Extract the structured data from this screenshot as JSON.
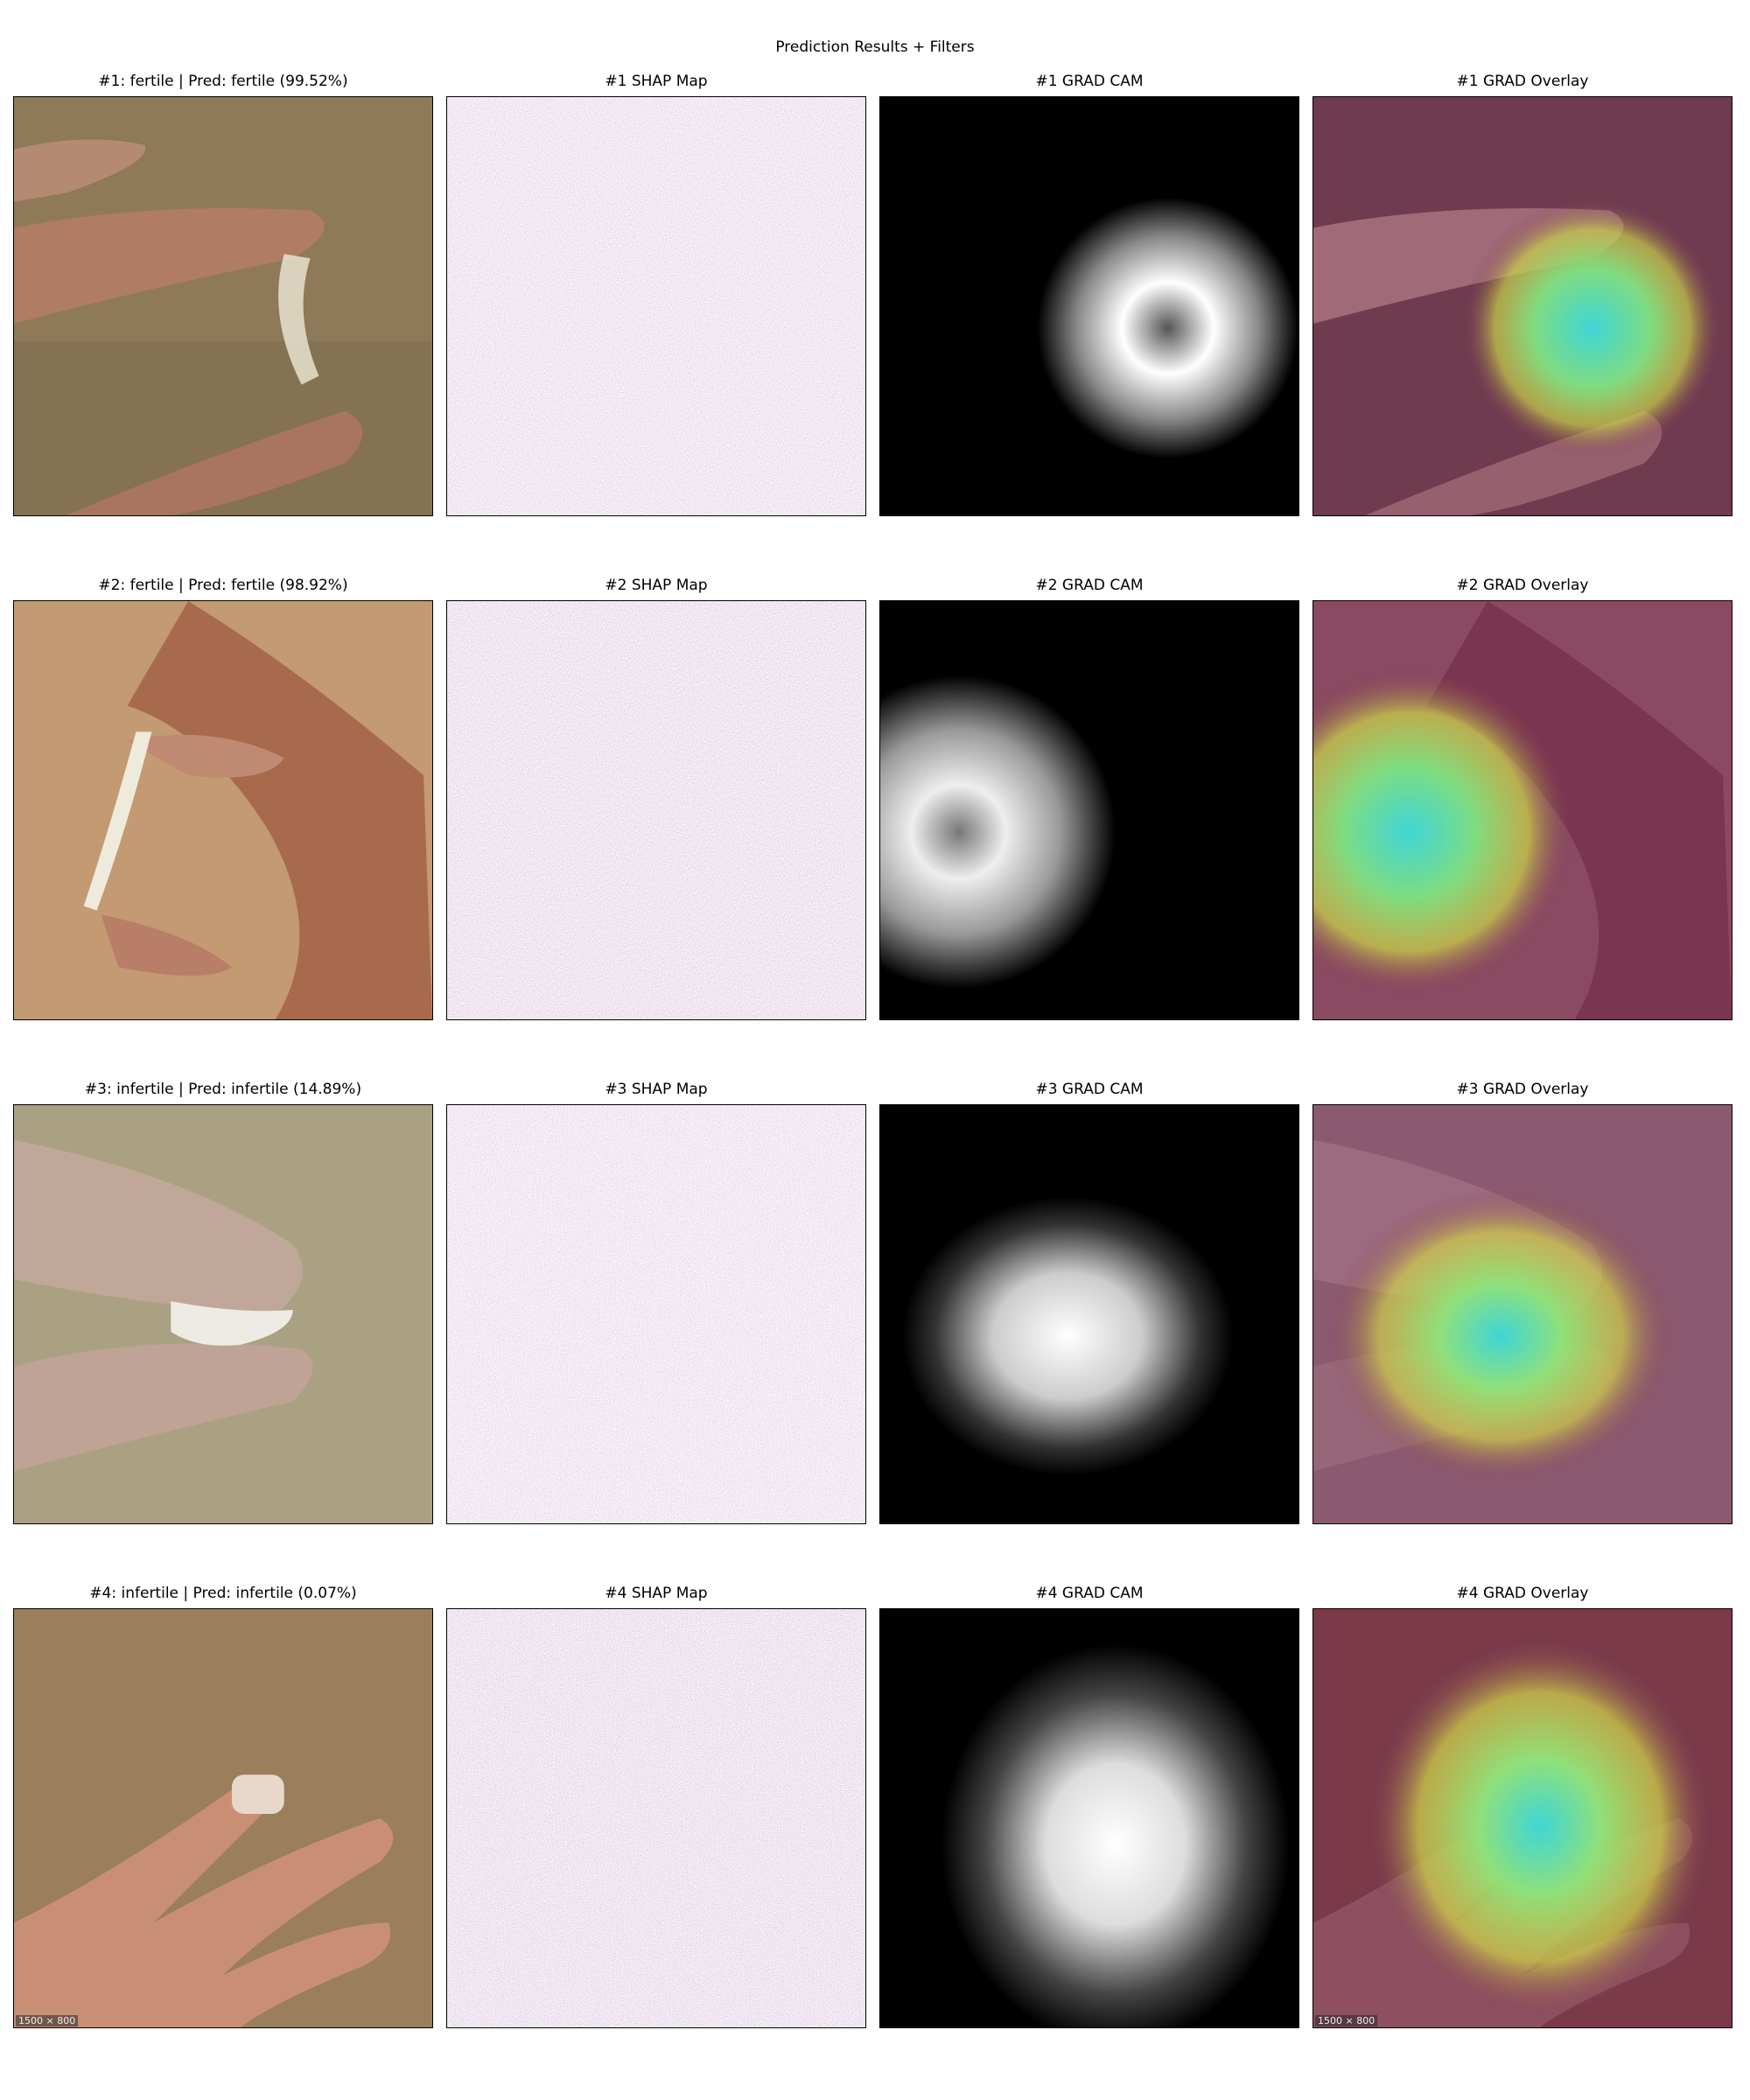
{
  "figure": {
    "title": "Prediction Results + Filters"
  },
  "rows": [
    {
      "original_title": "#1: fertile | Pred: fertile (99.52%)",
      "shap_title": "#1 SHAP Map",
      "cam_title": "#1 GRAD CAM",
      "overlay_title": "#1 GRAD Overlay",
      "watermark": ""
    },
    {
      "original_title": "#2: fertile | Pred: fertile (98.92%)",
      "shap_title": "#2 SHAP Map",
      "cam_title": "#2 GRAD CAM",
      "overlay_title": "#2 GRAD Overlay",
      "watermark": ""
    },
    {
      "original_title": "#3: infertile | Pred: infertile (14.89%)",
      "shap_title": "#3 SHAP Map",
      "cam_title": "#3 GRAD CAM",
      "overlay_title": "#3 GRAD Overlay",
      "watermark": ""
    },
    {
      "original_title": "#4: infertile | Pred: infertile (0.07%)",
      "shap_title": "#4 SHAP Map",
      "cam_title": "#4 GRAD CAM",
      "overlay_title": "#4 GRAD Overlay",
      "watermark": "1500 × 800"
    }
  ],
  "colors": {
    "background": "#ffffff",
    "text": "#000000",
    "shap_positive": "#e8325a",
    "shap_negative": "#3a6fd8",
    "cam_background": "#000000",
    "overlay_tint": "#7a2f55"
  }
}
